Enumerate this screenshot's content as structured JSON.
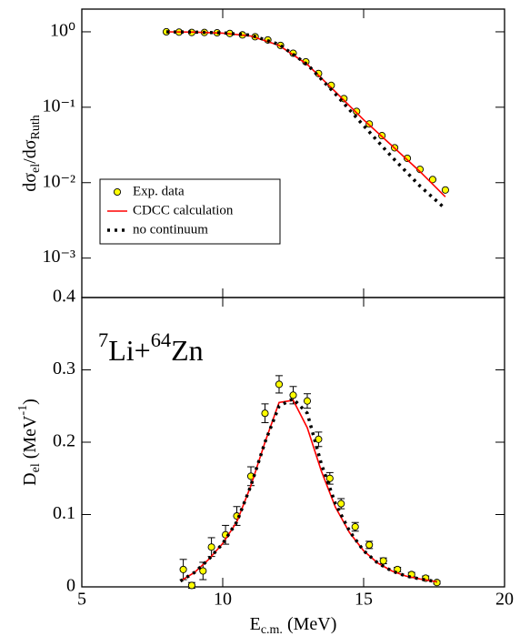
{
  "chart_data": [
    {
      "type": "line",
      "yscale": "log",
      "ylabel": [
        {
          "text": "dσ"
        },
        {
          "text": "el",
          "shift": "sub"
        },
        {
          "text": "/dσ"
        },
        {
          "text": "Ruth",
          "shift": "sub"
        }
      ],
      "xlim": [
        5,
        20
      ],
      "xticks": [
        5,
        10,
        15,
        20
      ],
      "ylim": [
        0.0003,
        2
      ],
      "yticks": [
        {
          "value": 1,
          "label": "10⁰"
        },
        {
          "value": 0.1,
          "label": "10⁻¹"
        },
        {
          "value": 0.01,
          "label": "10⁻²"
        },
        {
          "value": 0.001,
          "label": "10⁻³"
        }
      ],
      "legend": "lower left",
      "series": [
        {
          "name": "Exp. data",
          "style": "markers",
          "color": "#ffff00",
          "x": [
            8.0,
            8.45,
            8.9,
            9.35,
            9.8,
            10.25,
            10.7,
            11.15,
            11.6,
            12.05,
            12.5,
            12.95,
            13.4,
            13.85,
            14.3,
            14.75,
            15.2,
            15.65,
            16.1,
            16.55,
            17.0,
            17.45,
            17.9
          ],
          "values": [
            1.0,
            0.99,
            0.98,
            0.98,
            0.97,
            0.95,
            0.91,
            0.86,
            0.78,
            0.66,
            0.52,
            0.4,
            0.28,
            0.195,
            0.13,
            0.088,
            0.06,
            0.042,
            0.029,
            0.021,
            0.015,
            0.011,
            0.008
          ]
        },
        {
          "name": "CDCC calculation",
          "style": "solid",
          "color": "#ff0000",
          "x": [
            8,
            9,
            10,
            11,
            12,
            13,
            14,
            15,
            16,
            17,
            17.9
          ],
          "values": [
            1.0,
            0.99,
            0.96,
            0.88,
            0.66,
            0.37,
            0.16,
            0.068,
            0.031,
            0.014,
            0.0065
          ]
        },
        {
          "name": "no continuum",
          "style": "dotted",
          "color": "#000000",
          "x": [
            8,
            9,
            10,
            11,
            12,
            13,
            14,
            15,
            16,
            17,
            17.9
          ],
          "values": [
            1.0,
            0.99,
            0.97,
            0.9,
            0.68,
            0.37,
            0.15,
            0.057,
            0.022,
            0.009,
            0.0045
          ]
        }
      ]
    },
    {
      "type": "line",
      "ylabel": [
        {
          "text": "D"
        },
        {
          "text": "el",
          "shift": "sub"
        },
        {
          "text": " (MeV"
        },
        {
          "text": "-1",
          "shift": "sup"
        },
        {
          "text": ")"
        }
      ],
      "xlabel": [
        {
          "text": "E"
        },
        {
          "text": "c.m.",
          "shift": "sub"
        },
        {
          "text": " (MeV)"
        }
      ],
      "annotation": [
        {
          "text": "7",
          "shift": "sup"
        },
        {
          "text": "Li+"
        },
        {
          "text": "64",
          "shift": "sup"
        },
        {
          "text": "Zn"
        }
      ],
      "xlim": [
        5,
        20
      ],
      "xticks": [
        5,
        10,
        15,
        20
      ],
      "ylim": [
        0,
        0.4
      ],
      "yticks": [
        0,
        0.1,
        0.2,
        0.3,
        0.4
      ],
      "series": [
        {
          "style": "markers",
          "color": "#ffff00",
          "x": [
            8.6,
            8.9,
            9.3,
            9.6,
            10.1,
            10.5,
            11.0,
            11.5,
            12.0,
            12.5,
            13.0,
            13.4,
            13.8,
            14.2,
            14.7,
            15.2,
            15.7,
            16.2,
            16.7,
            17.2,
            17.6
          ],
          "values": [
            0.024,
            0.002,
            0.022,
            0.055,
            0.072,
            0.098,
            0.153,
            0.24,
            0.28,
            0.265,
            0.257,
            0.204,
            0.15,
            0.115,
            0.083,
            0.058,
            0.036,
            0.024,
            0.017,
            0.012,
            0.006
          ],
          "errors": [
            0.014,
            0.004,
            0.012,
            0.013,
            0.013,
            0.013,
            0.013,
            0.013,
            0.012,
            0.012,
            0.01,
            0.01,
            0.008,
            0.007,
            0.006,
            0.005,
            0.004,
            0.003,
            0.003,
            0.003,
            0.002
          ]
        },
        {
          "style": "solid",
          "color": "#ff0000",
          "x": [
            8.5,
            9,
            9.5,
            10,
            10.5,
            11,
            11.5,
            12,
            12.5,
            13,
            13.5,
            14,
            14.5,
            15,
            15.5,
            16,
            16.5,
            17,
            17.6
          ],
          "values": [
            0.008,
            0.02,
            0.038,
            0.06,
            0.09,
            0.14,
            0.2,
            0.255,
            0.258,
            0.22,
            0.16,
            0.11,
            0.075,
            0.05,
            0.033,
            0.022,
            0.015,
            0.011,
            0.007
          ]
        },
        {
          "style": "dotted",
          "color": "#000000",
          "x": [
            8.5,
            9,
            9.5,
            10,
            10.5,
            11,
            11.5,
            12,
            12.5,
            13,
            13.5,
            14,
            14.5,
            15,
            15.5,
            16,
            16.5,
            17,
            17.6
          ],
          "values": [
            0.008,
            0.02,
            0.038,
            0.06,
            0.09,
            0.14,
            0.2,
            0.25,
            0.26,
            0.24,
            0.17,
            0.115,
            0.077,
            0.05,
            0.033,
            0.022,
            0.015,
            0.011,
            0.007
          ]
        }
      ]
    }
  ]
}
